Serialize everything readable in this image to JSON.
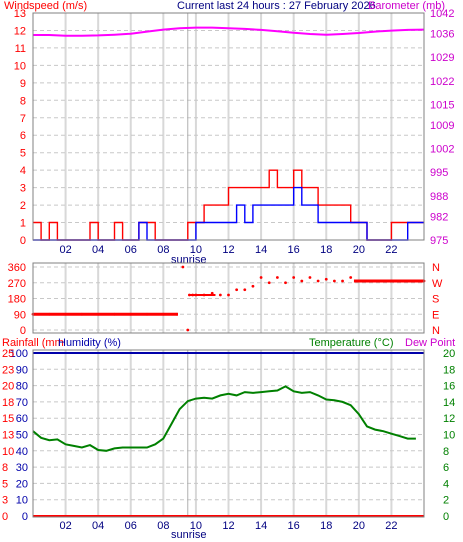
{
  "chart_data": [
    {
      "type": "line",
      "header_left": "Windspeed (m/s)",
      "header_center": "Current last 24 hours : 27 February 2026",
      "header_right": "Barometer (mb)",
      "x_tick_labels": [
        "02",
        "04",
        "06",
        "08",
        "10",
        "12",
        "14",
        "16",
        "18",
        "20",
        "22"
      ],
      "x_marker_label": "sunrise",
      "x_hours_range": [
        0,
        24
      ],
      "sunrise_hour": 9.5,
      "left_axis": {
        "range": [
          0,
          13
        ],
        "ticks": [
          0,
          1,
          2,
          3,
          4,
          5,
          6,
          7,
          8,
          9,
          10,
          11,
          12,
          13
        ]
      },
      "right_axis": {
        "range": [
          975,
          1042
        ],
        "ticks": [
          975,
          982,
          988,
          995,
          1002,
          1009,
          1015,
          1022,
          1029,
          1036,
          1042
        ]
      },
      "series": [
        {
          "name": "Barometer",
          "axis": "right",
          "color": "#ff00ff",
          "x": [
            0,
            1,
            2,
            3,
            4,
            5,
            6,
            7,
            8,
            9,
            10,
            11,
            12,
            13,
            14,
            15,
            16,
            17,
            18,
            19,
            20,
            21,
            22,
            23,
            24
          ],
          "y": [
            1035.5,
            1035.5,
            1035.3,
            1035.3,
            1035.4,
            1035.6,
            1035.9,
            1036.5,
            1037.1,
            1037.5,
            1037.7,
            1037.7,
            1037.5,
            1037.3,
            1037.0,
            1036.6,
            1036.2,
            1035.8,
            1035.6,
            1035.8,
            1036.1,
            1036.5,
            1036.8,
            1037.0,
            1037.1
          ]
        },
        {
          "name": "Gust",
          "axis": "left",
          "color": "#ff0000",
          "x": [
            0,
            0.5,
            1,
            1.5,
            2,
            2.5,
            3,
            3.5,
            4,
            4.5,
            5,
            5.5,
            6,
            6.5,
            7,
            7.5,
            8,
            8.5,
            9,
            9.5,
            10,
            10.5,
            11,
            11.5,
            12,
            12.5,
            13,
            13.5,
            14,
            14.5,
            15,
            15.5,
            16,
            16.5,
            17,
            17.5,
            18,
            18.5,
            19,
            19.5,
            20,
            20.5,
            21,
            21.5,
            22,
            22.5,
            23,
            23.5
          ],
          "y": [
            1,
            0,
            1,
            0,
            0,
            0,
            0,
            1,
            0,
            0,
            1,
            0,
            0,
            1,
            1,
            0,
            0,
            0,
            0,
            1,
            1,
            2,
            2,
            2,
            3,
            3,
            3,
            3,
            3,
            4,
            3,
            3,
            4,
            3,
            3,
            2,
            2,
            2,
            2,
            1,
            1,
            0,
            0,
            0,
            1,
            1,
            1,
            1
          ]
        },
        {
          "name": "Windspeed",
          "axis": "left",
          "color": "#0000ff",
          "x": [
            0,
            0.5,
            1,
            1.5,
            2,
            2.5,
            3,
            3.5,
            4,
            4.5,
            5,
            5.5,
            6,
            6.5,
            7,
            7.5,
            8,
            8.5,
            9,
            9.5,
            10,
            10.5,
            11,
            11.5,
            12,
            12.5,
            13,
            13.5,
            14,
            14.5,
            15,
            15.5,
            16,
            16.5,
            17,
            17.5,
            18,
            18.5,
            19,
            19.5,
            20,
            20.5,
            21,
            21.5,
            22,
            22.5,
            23,
            23.5
          ],
          "y": [
            0,
            0,
            0,
            0,
            0,
            0,
            0,
            0,
            0,
            0,
            0,
            0,
            0,
            1,
            0,
            0,
            0,
            0,
            0,
            0,
            1,
            1,
            1,
            1,
            1,
            2,
            1,
            2,
            2,
            2,
            2,
            2,
            3,
            2,
            2,
            1,
            1,
            1,
            1,
            1,
            1,
            0,
            0,
            0,
            0,
            0,
            1,
            1
          ]
        }
      ]
    },
    {
      "type": "scatter",
      "x_hours_range": [
        0,
        24
      ],
      "left_axis": {
        "range": [
          0,
          360
        ],
        "ticks": [
          0,
          90,
          180,
          270,
          360
        ]
      },
      "right_axis_labels": [
        "N",
        "W",
        "S",
        "E",
        "N"
      ],
      "series": [
        {
          "name": "Wind direction",
          "color": "#ff0000",
          "x": [
            0,
            1,
            2,
            3,
            4,
            5,
            6,
            7,
            8,
            8.8,
            9.2,
            9.5,
            9.6,
            9.8,
            10,
            10.5,
            11,
            11.5,
            12,
            12.5,
            13,
            13.5,
            14,
            14.5,
            15,
            15.5,
            16,
            16.5,
            17,
            17.5,
            18,
            18.5,
            19,
            19.5,
            20,
            21,
            22,
            23,
            24
          ],
          "y": [
            90,
            90,
            90,
            90,
            90,
            90,
            90,
            90,
            90,
            90,
            360,
            0,
            200,
            200,
            200,
            200,
            210,
            200,
            200,
            230,
            230,
            250,
            300,
            270,
            300,
            270,
            300,
            280,
            300,
            280,
            290,
            280,
            280,
            300,
            280,
            280,
            280,
            280,
            280
          ]
        }
      ]
    },
    {
      "type": "line",
      "header_left_1": "Rainfall (mm",
      "header_left_2": "Humidity (%)",
      "header_right_1": "Temperature (°C)",
      "header_right_2": "Dew Point",
      "x_tick_labels": [
        "02",
        "04",
        "06",
        "08",
        "10",
        "12",
        "14",
        "16",
        "18",
        "20",
        "22"
      ],
      "x_marker_label": "sunrise",
      "x_hours_range": [
        0,
        24
      ],
      "sunrise_hour": 9.5,
      "humidity_axis": {
        "range": [
          0,
          100
        ],
        "ticks": [
          0,
          10,
          20,
          30,
          40,
          50,
          60,
          70,
          80,
          90,
          100
        ]
      },
      "rainfall_axis": {
        "range": [
          0,
          25
        ],
        "ticks": [
          0,
          3,
          5,
          8,
          10,
          13,
          15,
          18,
          20,
          23,
          25
        ]
      },
      "temperature_axis": {
        "range": [
          0,
          20
        ],
        "ticks": [
          0,
          2,
          4,
          6,
          8,
          10,
          12,
          14,
          16,
          18,
          20
        ]
      },
      "series": [
        {
          "name": "Humidity",
          "axis": "humidity",
          "color": "#0000aa",
          "x": [
            0,
            24
          ],
          "y": [
            100,
            100
          ]
        },
        {
          "name": "Rainfall",
          "axis": "rainfall",
          "color": "#ff0000",
          "x": [
            0,
            24
          ],
          "y": [
            0,
            0
          ]
        },
        {
          "name": "Temperature",
          "axis": "temperature",
          "color": "#008000",
          "x": [
            0,
            0.5,
            1,
            1.5,
            2,
            2.5,
            3,
            3.5,
            4,
            4.5,
            5,
            5.5,
            6,
            6.5,
            7,
            7.5,
            8,
            8.5,
            9,
            9.5,
            10,
            10.5,
            11,
            11.5,
            12,
            12.5,
            13,
            13.5,
            14,
            14.5,
            15,
            15.5,
            16,
            16.5,
            17,
            17.5,
            18,
            18.5,
            19,
            19.5,
            20,
            20.5,
            21,
            21.5,
            22,
            22.5,
            23,
            23.5
          ],
          "y": [
            10.4,
            9.6,
            9.3,
            9.4,
            8.8,
            8.6,
            8.4,
            8.7,
            8.1,
            8.0,
            8.3,
            8.4,
            8.4,
            8.4,
            8.4,
            8.8,
            9.5,
            11.3,
            13.1,
            14.1,
            14.4,
            14.5,
            14.4,
            14.8,
            15.0,
            14.8,
            15.2,
            15.1,
            15.2,
            15.3,
            15.4,
            15.9,
            15.3,
            15.1,
            15.2,
            14.8,
            14.3,
            14.2,
            14.0,
            13.6,
            12.5,
            11.0,
            10.6,
            10.4,
            10.1,
            9.8,
            9.5,
            9.5
          ]
        }
      ]
    }
  ]
}
